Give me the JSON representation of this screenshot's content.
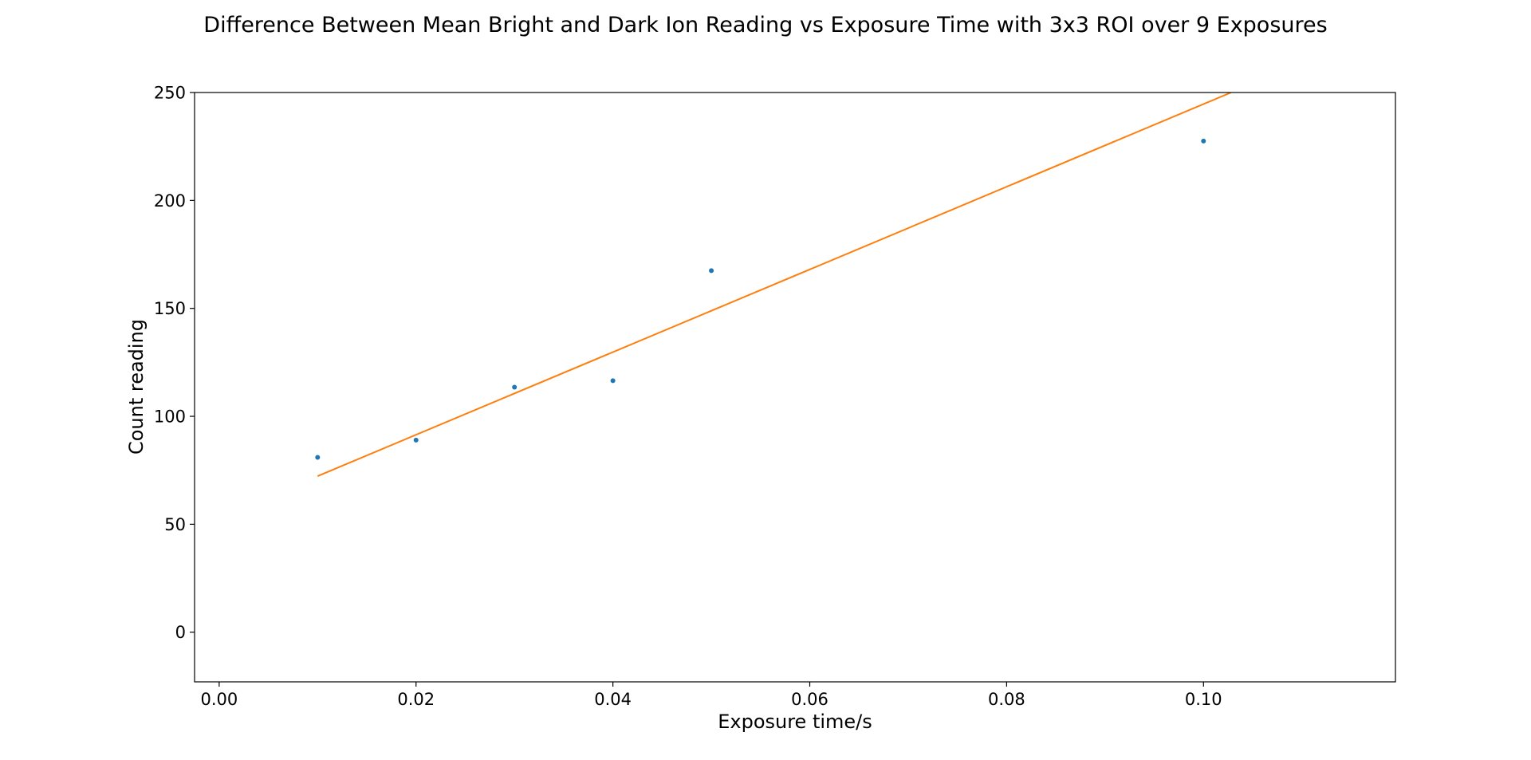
{
  "chart_data": {
    "type": "scatter",
    "title": "Difference Between Mean Bright and Dark Ion Reading vs Exposure Time with 3x3 ROI over 9 Exposures",
    "xlabel": "Exposure time/s",
    "ylabel": "Count reading",
    "xlim": [
      -0.0025,
      0.1195
    ],
    "ylim": [
      -23,
      250
    ],
    "grid": false,
    "x_ticks": [
      0.0,
      0.02,
      0.04,
      0.06,
      0.08,
      0.1
    ],
    "x_tick_labels": [
      "0.00",
      "0.02",
      "0.04",
      "0.06",
      "0.08",
      "0.10"
    ],
    "y_ticks": [
      0,
      50,
      100,
      150,
      200,
      250
    ],
    "y_tick_labels": [
      "0",
      "50",
      "100",
      "150",
      "200",
      "250"
    ],
    "series": [
      {
        "kind": "points",
        "color": "#1f77b4",
        "x": [
          0.01,
          0.02,
          0.03,
          0.04,
          0.05,
          0.1
        ],
        "y": [
          81,
          89,
          113.5,
          116.5,
          167.5,
          227.5
        ]
      },
      {
        "kind": "line",
        "color": "#ff7f0e",
        "x": [
          0.01,
          0.1028
        ],
        "y": [
          72.3,
          250
        ]
      }
    ]
  }
}
